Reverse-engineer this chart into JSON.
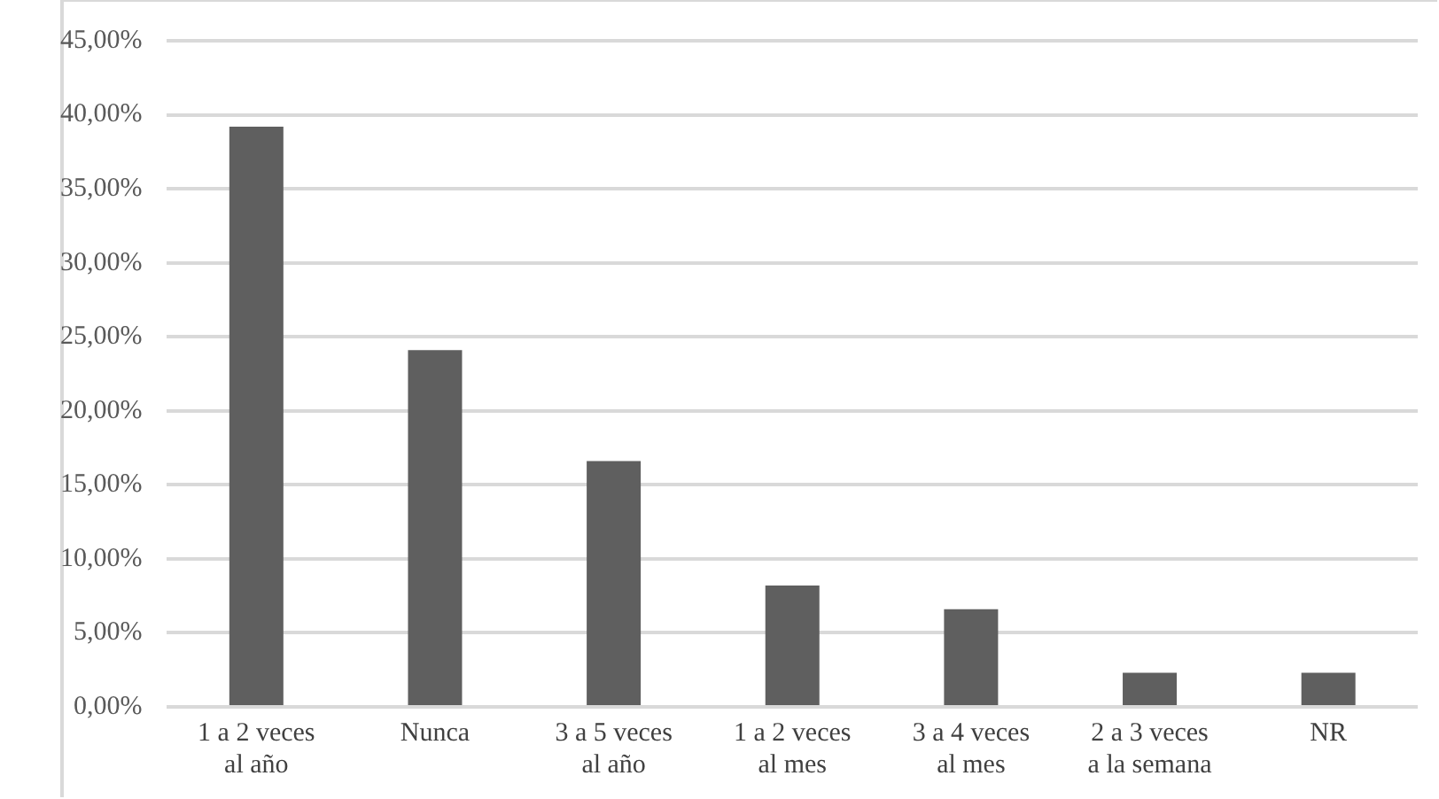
{
  "chart_data": {
    "type": "bar",
    "categories": [
      "1 a 2 veces al año",
      "Nunca",
      "3 a 5 veces al año",
      "1 a 2 veces al mes",
      "3 a 4 veces al mes",
      "2 a 3 veces a la semana",
      "NR"
    ],
    "values": [
      39.2,
      24.1,
      16.6,
      8.2,
      6.6,
      2.3,
      2.3
    ],
    "color": "#5f5f5f",
    "ylim": [
      0,
      45
    ],
    "yticks": [
      {
        "value": 0,
        "label": "0,00%"
      },
      {
        "value": 5,
        "label": "5,00%"
      },
      {
        "value": 10,
        "label": "10,00%"
      },
      {
        "value": 15,
        "label": "15,00%"
      },
      {
        "value": 20,
        "label": "20,00%"
      },
      {
        "value": 25,
        "label": "25,00%"
      },
      {
        "value": 30,
        "label": "30,00%"
      },
      {
        "value": 35,
        "label": "35,00%"
      },
      {
        "value": 40,
        "label": "40,00%"
      },
      {
        "value": 45,
        "label": "45,00%"
      }
    ],
    "grid": "y"
  }
}
